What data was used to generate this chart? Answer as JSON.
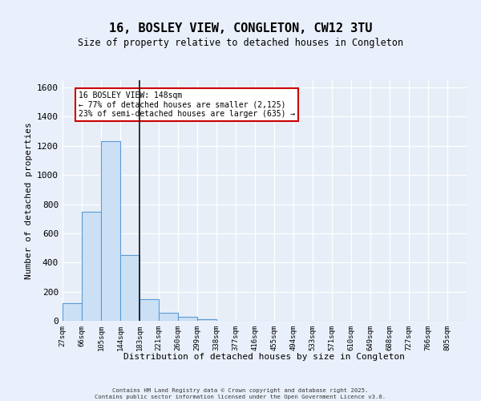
{
  "title": "16, BOSLEY VIEW, CONGLETON, CW12 3TU",
  "subtitle": "Size of property relative to detached houses in Congleton",
  "xlabel": "Distribution of detached houses by size in Congleton",
  "ylabel": "Number of detached properties",
  "bin_labels": [
    "27sqm",
    "66sqm",
    "105sqm",
    "144sqm",
    "183sqm",
    "221sqm",
    "260sqm",
    "299sqm",
    "338sqm",
    "377sqm",
    "416sqm",
    "455sqm",
    "494sqm",
    "533sqm",
    "571sqm",
    "610sqm",
    "649sqm",
    "688sqm",
    "727sqm",
    "766sqm",
    "805sqm"
  ],
  "bar_values": [
    120,
    750,
    1230,
    450,
    150,
    55,
    30,
    10,
    0,
    0,
    0,
    0,
    0,
    0,
    0,
    0,
    0,
    0,
    0,
    0,
    0
  ],
  "bar_color": "#cce0f5",
  "bar_edge_color": "#5b9bd5",
  "property_line_x": 4.0,
  "annotation_title": "16 BOSLEY VIEW: 148sqm",
  "annotation_line1": "← 77% of detached houses are smaller (2,125)",
  "annotation_line2": "23% of semi-detached houses are larger (635) →",
  "annotation_box_facecolor": "#ffffff",
  "annotation_box_edgecolor": "#cc0000",
  "ylim": [
    0,
    1650
  ],
  "yticks": [
    0,
    200,
    400,
    600,
    800,
    1000,
    1200,
    1400,
    1600
  ],
  "fig_bg_color": "#eaf0fb",
  "ax_bg_color": "#e8eef8",
  "grid_color": "#ffffff",
  "footer_line1": "Contains HM Land Registry data © Crown copyright and database right 2025.",
  "footer_line2": "Contains public sector information licensed under the Open Government Licence v3.0."
}
